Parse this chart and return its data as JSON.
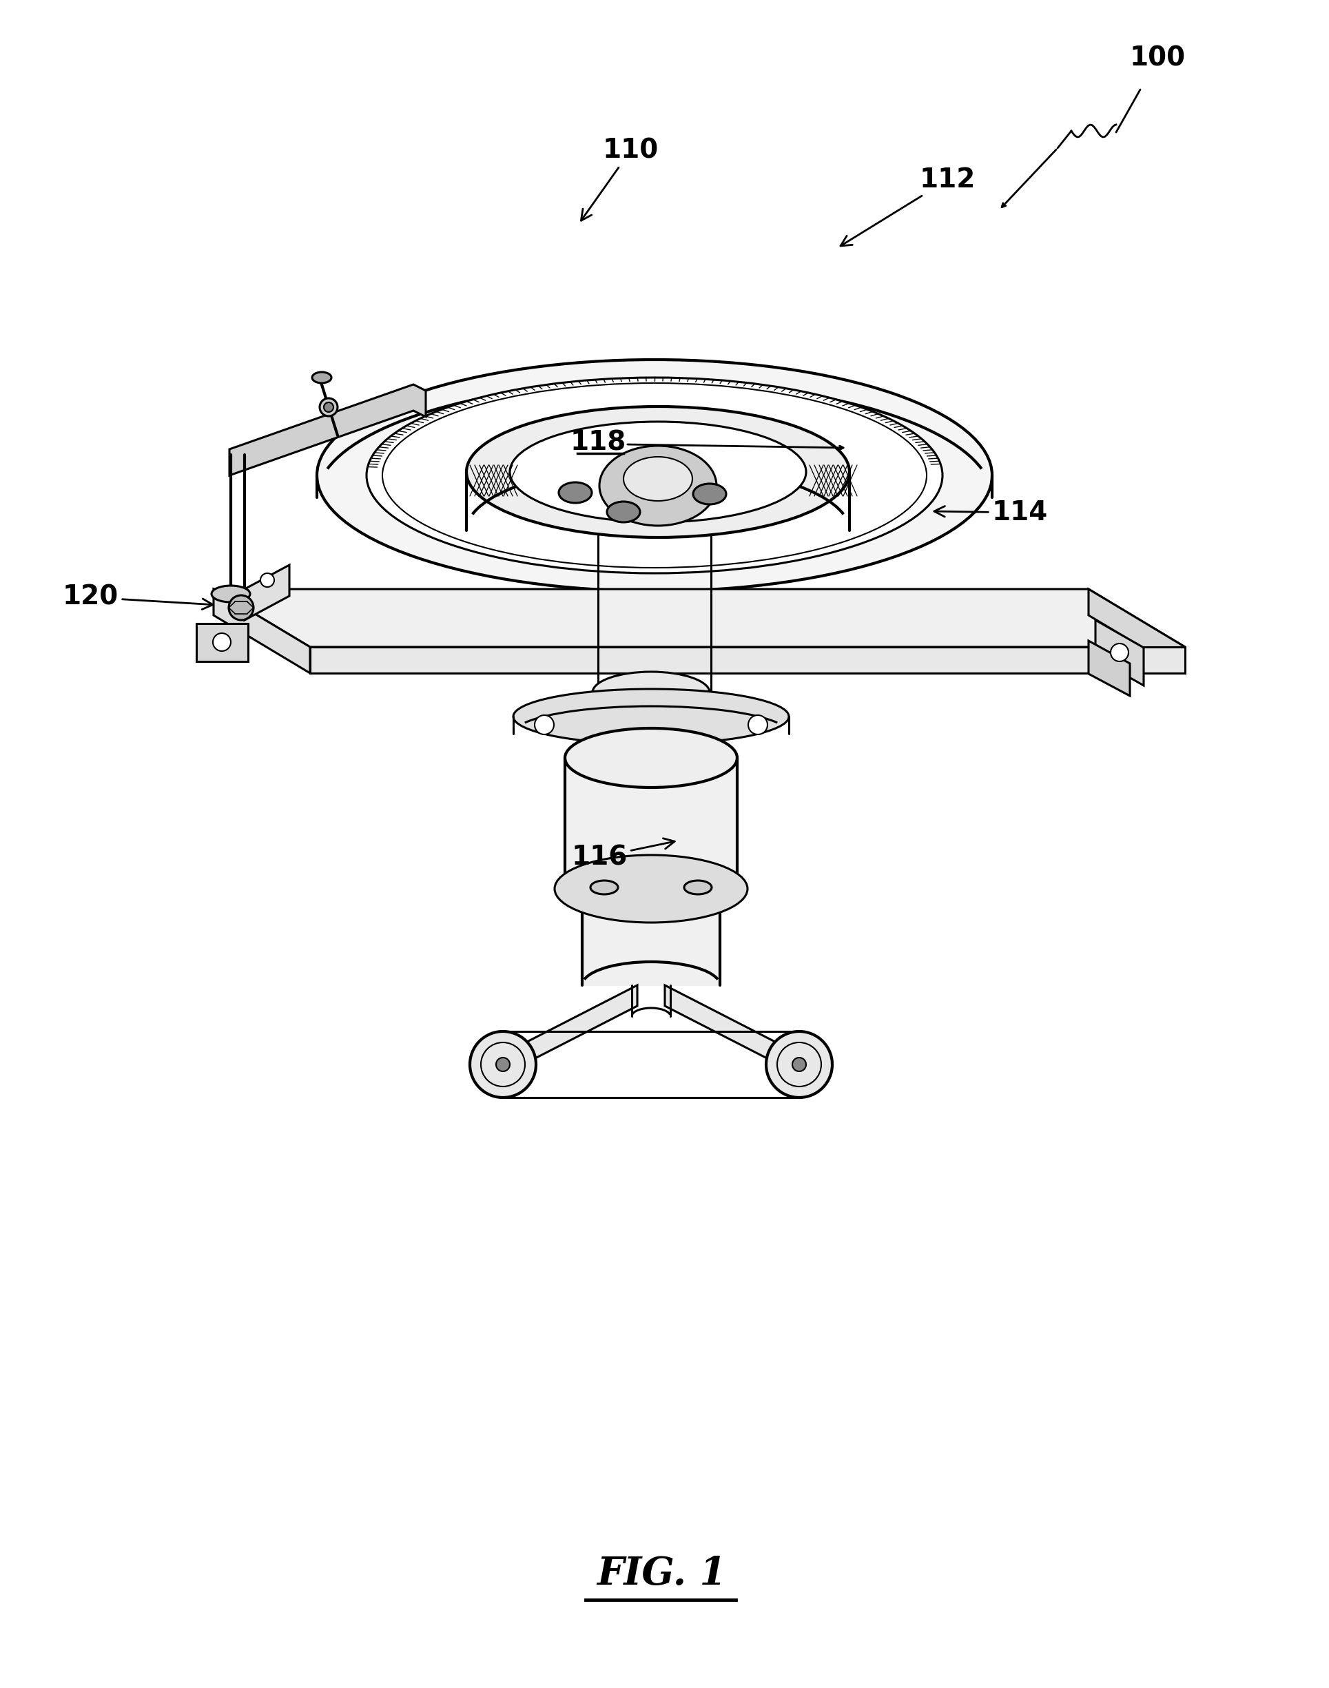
{
  "bg_color": "#ffffff",
  "line_color": "#000000",
  "fig_width": 19.29,
  "fig_height": 24.5,
  "title": "FIG. 1"
}
